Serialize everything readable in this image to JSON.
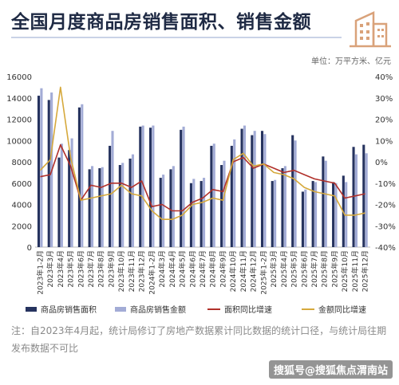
{
  "title": "全国月度商品房销售面积、销售金额",
  "unit": "单位：万平方米、亿元",
  "note": "注：自2023年4月起，统计局修订了房地产数据累计同比数据的统计口径，与统计局往期发布数据不可比",
  "watermark": "搜狐号@搜狐焦点渭南站",
  "corner_icon": "building-icon",
  "colors": {
    "area_bar": "#26335f",
    "amount_bar": "#a3acd6",
    "area_yoy": "#b1302a",
    "amount_yoy": "#d6a93c",
    "title": "#1f2a44"
  },
  "chart_data": {
    "type": "bar",
    "categories": [
      "2023年1-2月",
      "2023年3月",
      "2023年4月",
      "2023年5月",
      "2023年6月",
      "2023年7月",
      "2023年8月",
      "2023年9月",
      "2023年10月",
      "2023年11月",
      "2023年12月",
      "2024年1-2月",
      "2024年3月",
      "2024年4月",
      "2024年5月",
      "2024年6月",
      "2024年7月",
      "2024年8月",
      "2024年9月",
      "2024年10月",
      "2024年11月",
      "2024年12月",
      "2025年1-2月",
      "2025年3月",
      "2025年4月",
      "2025年5月",
      "2025年6月",
      "2025年7月",
      "2025年8月",
      "2025年9月",
      "2025年10月",
      "2025年11月",
      "2025年12月"
    ],
    "y_left": {
      "min": 0,
      "max": 16000,
      "ticks": [
        0,
        2000,
        4000,
        6000,
        8000,
        10000,
        12000,
        14000,
        16000
      ]
    },
    "y_right": {
      "min": -40,
      "max": 40,
      "ticks": [
        "-40%",
        "-30%",
        "-20%",
        "-10%",
        "0%",
        "10%",
        "20%",
        "30%",
        "40%"
      ]
    },
    "series": [
      {
        "name": "商品房销售面积",
        "type": "bar",
        "axis": "left",
        "values": [
          14200,
          13800,
          8400,
          9100,
          13100,
          7300,
          7400,
          9500,
          7700,
          8300,
          11300,
          11200,
          6500,
          7300,
          11000,
          6000,
          6200,
          9500,
          7700,
          9500,
          11100,
          10500,
          10900,
          6200,
          7400,
          10500,
          5200,
          6200,
          8500,
          6100,
          6700,
          9400,
          9600
        ]
      },
      {
        "name": "商品房销售金额",
        "type": "bar",
        "axis": "left",
        "values": [
          14900,
          14500,
          9700,
          10200,
          13400,
          7600,
          7500,
          10900,
          7900,
          8700,
          11400,
          11400,
          6800,
          7600,
          11300,
          6400,
          6500,
          9700,
          8100,
          10100,
          11400,
          10900,
          10600,
          6300,
          7600,
          10000,
          5400,
          6100,
          8100,
          6000,
          6100,
          8700,
          8800
        ]
      },
      {
        "name": "面积同比增速",
        "type": "line",
        "axis": "right",
        "values": [
          -7,
          -6,
          8,
          -2,
          -18,
          -11,
          -12,
          -10,
          -10,
          -12,
          -9,
          -21,
          -20,
          -23,
          -23,
          -19,
          -17,
          -13,
          -14,
          0,
          2,
          -3,
          -1,
          -3,
          -5,
          -4,
          -6,
          -8,
          -9,
          -10,
          -17,
          -16,
          -15
        ]
      },
      {
        "name": "金额同比增速",
        "type": "line",
        "axis": "right",
        "values": [
          -4,
          1,
          35,
          2,
          -18,
          -17,
          -16,
          -15,
          -11,
          -15,
          -16,
          -23,
          -27,
          -27,
          -25,
          -20,
          -19,
          -17,
          -18,
          1,
          4,
          -2,
          -1,
          -5,
          -6,
          -8,
          -12,
          -14,
          -15,
          -16,
          -25,
          -25,
          -24
        ]
      }
    ],
    "legend_position": "bottom",
    "grid": false
  }
}
